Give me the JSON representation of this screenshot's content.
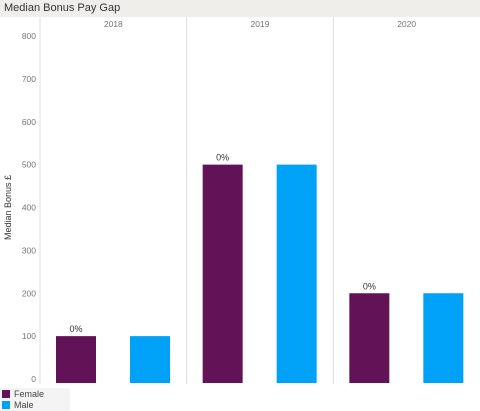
{
  "title": "Median Bonus Pay Gap",
  "chart_data": {
    "type": "bar",
    "ylabel": "Median Bonus £",
    "xlabel": "",
    "ylim": [
      0,
      800
    ],
    "yticks": [
      0,
      100,
      200,
      300,
      400,
      500,
      600,
      700,
      800
    ],
    "grid": false,
    "legend_position": "bottom-left",
    "panels": [
      {
        "label": "2018",
        "values": [
          100,
          100
        ],
        "annotation": "0%"
      },
      {
        "label": "2019",
        "values": [
          500,
          500
        ],
        "annotation": "0%"
      },
      {
        "label": "2020",
        "values": [
          200,
          200
        ],
        "annotation": "0%"
      }
    ],
    "series": [
      {
        "name": "Female",
        "color": "#621358"
      },
      {
        "name": "Male",
        "color": "#00a2f7"
      }
    ]
  }
}
